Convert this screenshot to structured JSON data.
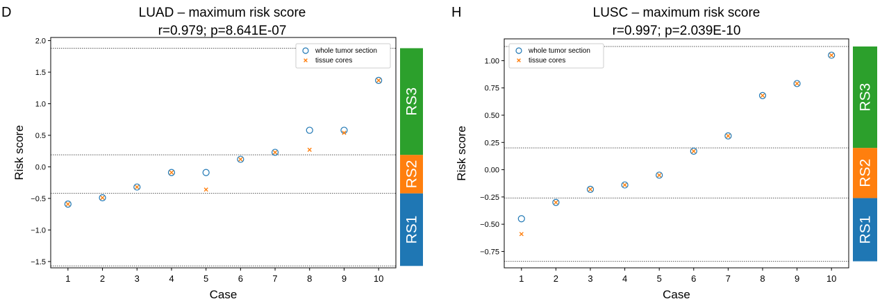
{
  "colors": {
    "whole_tumor": "#1f77b4",
    "tissue_cores": "#ff7f0e",
    "RS1": "#1f77b4",
    "RS2": "#ff7f0e",
    "RS3": "#2ca02c"
  },
  "chart_data": [
    {
      "type": "scatter",
      "panel_letter": "D",
      "title": "LUAD – maximum risk score",
      "subtitle": "r=0.979; p=8.641E-07",
      "xlabel": "Case",
      "ylabel": "Risk score",
      "xlim": [
        0.5,
        10.5
      ],
      "ylim": [
        -1.6,
        2.05
      ],
      "x": [
        1,
        2,
        3,
        4,
        5,
        6,
        7,
        8,
        9,
        10
      ],
      "yticks": [
        -1.5,
        -1.0,
        -0.5,
        0.0,
        0.5,
        1.0,
        1.5,
        2.0
      ],
      "ytick_labels": [
        "−1.5",
        "−1.0",
        "−0.5",
        "0.0",
        "0.5",
        "1.0",
        "1.5",
        "2.0"
      ],
      "legend": [
        "whole tumor section",
        "tissue cores"
      ],
      "legend_position": "top-right",
      "series": [
        {
          "name": "whole tumor section",
          "marker": "open-circle",
          "values": [
            -0.59,
            -0.49,
            -0.32,
            -0.09,
            -0.09,
            0.12,
            0.23,
            0.58,
            0.58,
            1.37
          ]
        },
        {
          "name": "tissue cores",
          "marker": "x",
          "values": [
            -0.59,
            -0.49,
            -0.32,
            -0.09,
            -0.36,
            0.12,
            0.23,
            0.27,
            0.54,
            1.37
          ]
        }
      ],
      "thresholds": [
        -1.57,
        -0.42,
        0.19,
        1.88
      ],
      "bands": [
        {
          "label": "RS1",
          "from": -1.57,
          "to": -0.42,
          "color": "#1f77b4"
        },
        {
          "label": "RS2",
          "from": -0.42,
          "to": 0.19,
          "color": "#ff7f0e"
        },
        {
          "label": "RS3",
          "from": 0.19,
          "to": 1.88,
          "color": "#2ca02c"
        }
      ]
    },
    {
      "type": "scatter",
      "panel_letter": "H",
      "title": "LUSC – maximum risk score",
      "subtitle": "r=0.997; p=2.039E-10",
      "xlabel": "Case",
      "ylabel": "Risk score",
      "xlim": [
        0.5,
        10.5
      ],
      "ylim": [
        -0.9,
        1.2
      ],
      "x": [
        1,
        2,
        3,
        4,
        5,
        6,
        7,
        8,
        9,
        10
      ],
      "yticks": [
        -0.75,
        -0.5,
        -0.25,
        0.0,
        0.25,
        0.5,
        0.75,
        1.0
      ],
      "ytick_labels": [
        "−0.75",
        "−0.50",
        "−0.25",
        "0.00",
        "0.25",
        "0.50",
        "0.75",
        "1.00"
      ],
      "legend": [
        "whole tumor section",
        "tissue cores"
      ],
      "legend_position": "top-left",
      "series": [
        {
          "name": "whole tumor section",
          "marker": "open-circle",
          "values": [
            -0.45,
            -0.3,
            -0.18,
            -0.14,
            -0.05,
            0.17,
            0.31,
            0.68,
            0.79,
            1.05
          ]
        },
        {
          "name": "tissue cores",
          "marker": "x",
          "values": [
            -0.59,
            -0.3,
            -0.18,
            -0.14,
            -0.05,
            0.17,
            0.31,
            0.68,
            0.79,
            1.05
          ]
        }
      ],
      "thresholds": [
        -0.84,
        -0.26,
        0.2,
        1.13
      ],
      "bands": [
        {
          "label": "RS1",
          "from": -0.84,
          "to": -0.26,
          "color": "#1f77b4"
        },
        {
          "label": "RS2",
          "from": -0.26,
          "to": 0.2,
          "color": "#ff7f0e"
        },
        {
          "label": "RS3",
          "from": 0.2,
          "to": 1.13,
          "color": "#2ca02c"
        }
      ]
    }
  ]
}
